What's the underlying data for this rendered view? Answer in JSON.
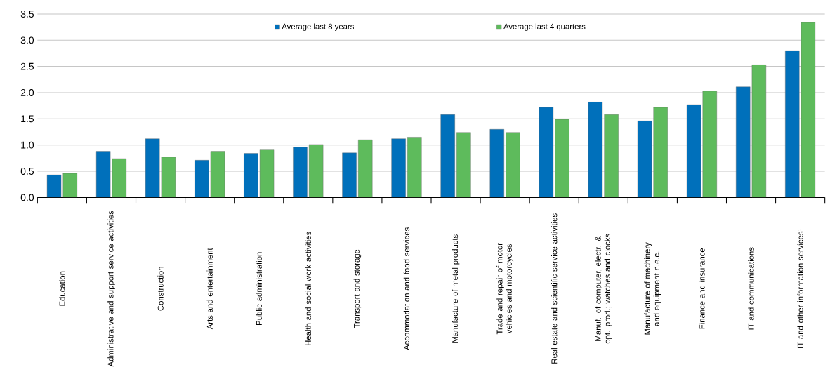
{
  "chart_data": {
    "type": "bar",
    "categories": [
      "Education",
      "Administrative and support service activities",
      "Construction",
      "Arts and entertainment",
      "Public administration",
      "Health and social work activities",
      "Transport and storage",
      "Accommodation and food services",
      "Manufacture of metal products",
      "Trade and repair of motor vehicles and motorcycles",
      "Real estate and scientific service activities",
      "Manuf. of computer, electr. & opt. prod.; watches and clocks",
      "Manufacture of machinery and equipment n.e.c.",
      "Finance and insurance",
      "IT and communications",
      "IT and other information services¹"
    ],
    "series": [
      {
        "name": "Average last 8 years",
        "color": "#0070bb",
        "values": [
          0.43,
          0.88,
          1.12,
          0.71,
          0.84,
          0.96,
          0.85,
          1.12,
          1.58,
          1.3,
          1.72,
          1.82,
          1.46,
          1.77,
          2.11,
          2.8
        ]
      },
      {
        "name": "Average last 4 quarters",
        "color": "#5ebb5c",
        "values": [
          0.46,
          0.74,
          0.77,
          0.88,
          0.92,
          1.01,
          1.1,
          1.15,
          1.24,
          1.24,
          1.49,
          1.58,
          1.72,
          2.03,
          2.53,
          3.34
        ]
      }
    ],
    "ylim": [
      0,
      3.5
    ],
    "yticks": [
      {
        "value": 0,
        "label": "0.0"
      },
      {
        "value": 0.5,
        "label": "0.5"
      },
      {
        "value": 1,
        "label": "1.0"
      },
      {
        "value": 1.5,
        "label": "1.5"
      },
      {
        "value": 2,
        "label": "2.0"
      },
      {
        "value": 2.5,
        "label": "2.5"
      },
      {
        "value": 3,
        "label": "3.0"
      },
      {
        "value": 3.5,
        "label": "3.5"
      }
    ],
    "grid": "y",
    "legend": "top"
  }
}
